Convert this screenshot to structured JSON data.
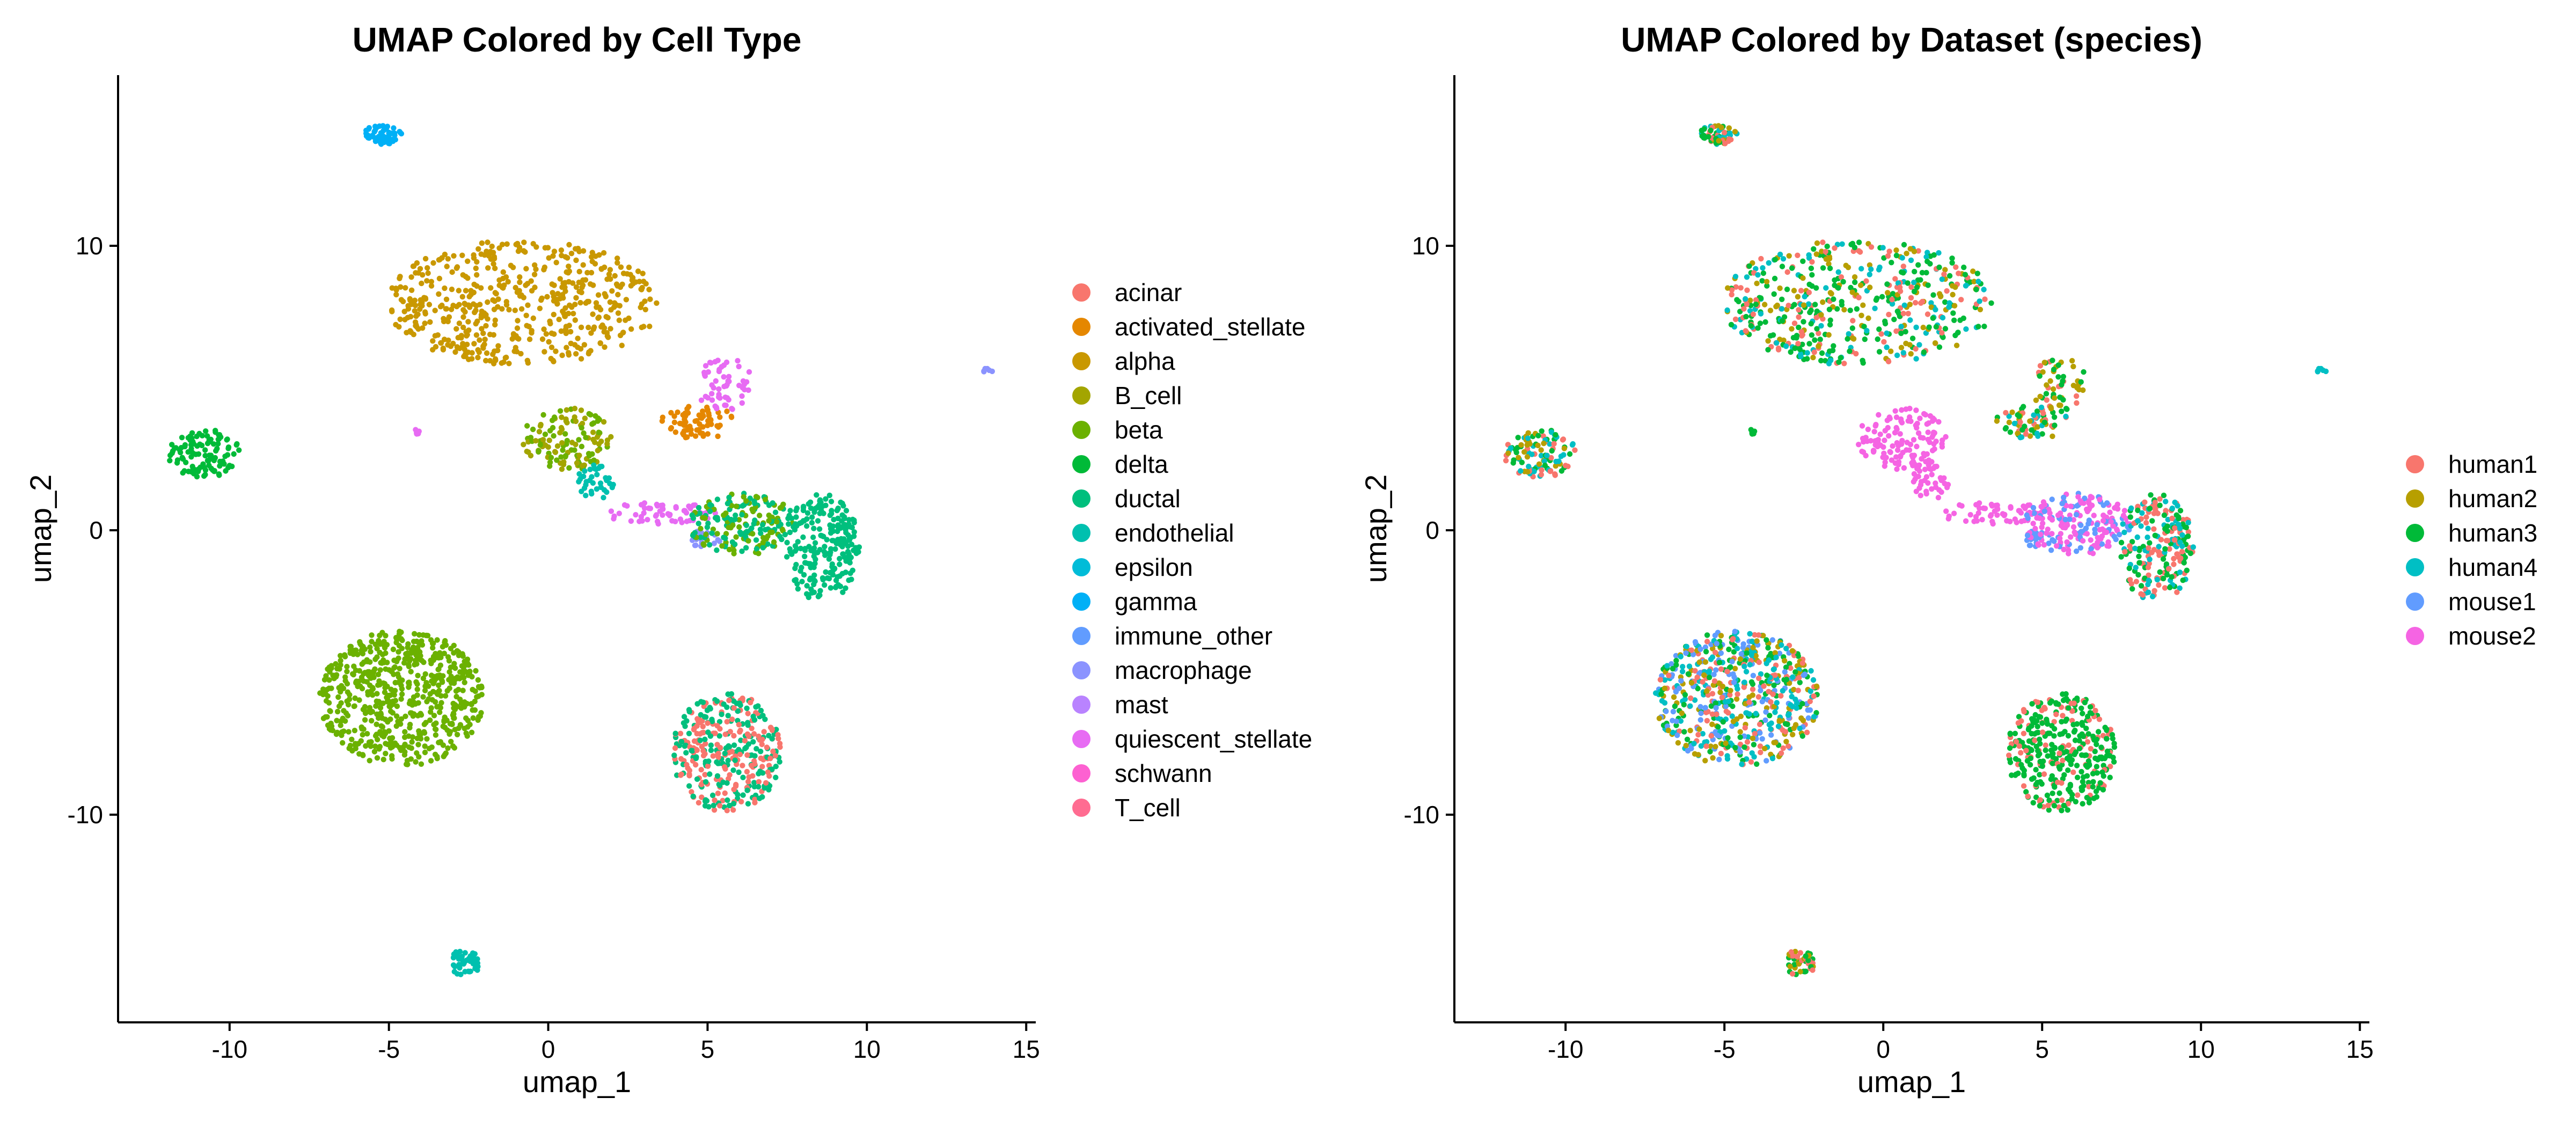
{
  "chart_data": [
    {
      "type": "scatter",
      "title": "UMAP Colored by Cell Type",
      "xlabel": "umap_1",
      "ylabel": "umap_2",
      "xlim": [
        -13.5,
        15.3
      ],
      "ylim": [
        -17.3,
        16
      ],
      "xticks": [
        -10,
        -5,
        0,
        5,
        10,
        15
      ],
      "yticks": [
        -10,
        0,
        10
      ],
      "grid": false,
      "legend_position": "right",
      "legend": [
        {
          "label": "acinar",
          "color": "#F8766D"
        },
        {
          "label": "activated_stellate",
          "color": "#E58700"
        },
        {
          "label": "alpha",
          "color": "#C99800"
        },
        {
          "label": "B_cell",
          "color": "#A3A500"
        },
        {
          "label": "beta",
          "color": "#6BB100"
        },
        {
          "label": "delta",
          "color": "#00BA38"
        },
        {
          "label": "ductal",
          "color": "#00BF7D"
        },
        {
          "label": "endothelial",
          "color": "#00C0AF"
        },
        {
          "label": "epsilon",
          "color": "#00BCD8"
        },
        {
          "label": "gamma",
          "color": "#00B0F6"
        },
        {
          "label": "immune_other",
          "color": "#619CFF"
        },
        {
          "label": "macrophage",
          "color": "#8B93FF"
        },
        {
          "label": "mast",
          "color": "#B983FF"
        },
        {
          "label": "quiescent_stellate",
          "color": "#E76BF3"
        },
        {
          "label": "schwann",
          "color": "#FD61D1"
        },
        {
          "label": "T_cell",
          "color": "#FF6C91"
        }
      ],
      "clusters": [
        {
          "x": -5.2,
          "y": 13.9,
          "rx": 0.6,
          "ry": 0.35,
          "n": 60,
          "colors": [
            "#00B0F6"
          ]
        },
        {
          "x": -0.8,
          "y": 8.0,
          "rx": 4.3,
          "ry": 2.2,
          "n": 520,
          "colors": [
            "#C99800"
          ]
        },
        {
          "x": -10.8,
          "y": 2.7,
          "rx": 1.2,
          "ry": 0.85,
          "n": 110,
          "colors": [
            "#00BA38"
          ]
        },
        {
          "x": 0.6,
          "y": 3.2,
          "rx": 1.4,
          "ry": 1.1,
          "n": 130,
          "colors": [
            "#6BB100",
            "#A3A500"
          ]
        },
        {
          "x": 1.5,
          "y": 1.7,
          "rx": 0.6,
          "ry": 0.6,
          "n": 35,
          "colors": [
            "#00C0AF"
          ]
        },
        {
          "x": 4.7,
          "y": 3.8,
          "rx": 1.2,
          "ry": 0.6,
          "n": 70,
          "colors": [
            "#E58700"
          ]
        },
        {
          "x": 5.5,
          "y": 5.2,
          "rx": 0.9,
          "ry": 1.0,
          "n": 55,
          "colors": [
            "#E76BF3"
          ]
        },
        {
          "x": 3.5,
          "y": 0.6,
          "rx": 1.8,
          "ry": 0.4,
          "n": 60,
          "colors": [
            "#E76BF3"
          ]
        },
        {
          "x": 4.9,
          "y": -0.3,
          "rx": 0.5,
          "ry": 0.3,
          "n": 20,
          "colors": [
            "#8B93FF"
          ]
        },
        {
          "x": 6.1,
          "y": 0.2,
          "rx": 1.7,
          "ry": 1.1,
          "n": 190,
          "colors": [
            "#6BB100",
            "#00BF7D"
          ]
        },
        {
          "x": 8.6,
          "y": -0.6,
          "rx": 1.2,
          "ry": 1.9,
          "n": 220,
          "colors": [
            "#00BF7D"
          ]
        },
        {
          "x": -4.6,
          "y": -5.9,
          "rx": 2.6,
          "ry": 2.4,
          "n": 620,
          "colors": [
            "#6BB100"
          ]
        },
        {
          "x": 5.6,
          "y": -7.8,
          "rx": 1.7,
          "ry": 2.1,
          "n": 360,
          "colors": [
            "#F8766D",
            "#00BF7D"
          ]
        },
        {
          "x": -2.6,
          "y": -15.2,
          "rx": 0.45,
          "ry": 0.5,
          "n": 45,
          "colors": [
            "#00C0AF"
          ]
        },
        {
          "x": 13.8,
          "y": 5.6,
          "rx": 0.15,
          "ry": 0.1,
          "n": 6,
          "colors": [
            "#8B93FF"
          ]
        },
        {
          "x": -4.1,
          "y": 3.5,
          "rx": 0.2,
          "ry": 0.12,
          "n": 5,
          "colors": [
            "#E76BF3"
          ]
        }
      ]
    },
    {
      "type": "scatter",
      "title": "UMAP Colored by Dataset (species)",
      "xlabel": "umap_1",
      "ylabel": "umap_2",
      "xlim": [
        -13.5,
        15.3
      ],
      "ylim": [
        -17.3,
        16
      ],
      "xticks": [
        -10,
        -5,
        0,
        5,
        10,
        15
      ],
      "yticks": [
        -10,
        0,
        10
      ],
      "grid": false,
      "legend_position": "right",
      "legend": [
        {
          "label": "human1",
          "color": "#F8766D"
        },
        {
          "label": "human2",
          "color": "#B79F00"
        },
        {
          "label": "human3",
          "color": "#00BA38"
        },
        {
          "label": "human4",
          "color": "#00BFC4"
        },
        {
          "label": "mouse1",
          "color": "#619CFF"
        },
        {
          "label": "mouse2",
          "color": "#F564E3"
        }
      ],
      "clusters": [
        {
          "x": -5.2,
          "y": 13.9,
          "rx": 0.6,
          "ry": 0.35,
          "n": 60,
          "colors": [
            "#00BA38",
            "#00BFC4",
            "#F8766D",
            "#B79F00"
          ]
        },
        {
          "x": -0.8,
          "y": 8.0,
          "rx": 4.3,
          "ry": 2.2,
          "n": 520,
          "colors": [
            "#00BA38",
            "#00BA38",
            "#00BFC4",
            "#F8766D",
            "#B79F00"
          ]
        },
        {
          "x": -10.8,
          "y": 2.7,
          "rx": 1.2,
          "ry": 0.85,
          "n": 110,
          "colors": [
            "#00BA38",
            "#00BFC4",
            "#F8766D",
            "#B79F00"
          ]
        },
        {
          "x": 0.6,
          "y": 3.2,
          "rx": 1.4,
          "ry": 1.1,
          "n": 130,
          "colors": [
            "#F564E3"
          ]
        },
        {
          "x": 1.5,
          "y": 1.7,
          "rx": 0.6,
          "ry": 0.6,
          "n": 35,
          "colors": [
            "#F564E3"
          ]
        },
        {
          "x": 4.7,
          "y": 3.8,
          "rx": 1.2,
          "ry": 0.6,
          "n": 70,
          "colors": [
            "#00BA38",
            "#00BFC4",
            "#F8766D",
            "#B79F00"
          ]
        },
        {
          "x": 5.5,
          "y": 5.2,
          "rx": 0.9,
          "ry": 1.0,
          "n": 55,
          "colors": [
            "#00BA38",
            "#F8766D",
            "#B79F00"
          ]
        },
        {
          "x": 3.5,
          "y": 0.6,
          "rx": 1.8,
          "ry": 0.4,
          "n": 60,
          "colors": [
            "#F564E3"
          ]
        },
        {
          "x": 4.9,
          "y": -0.3,
          "rx": 0.5,
          "ry": 0.3,
          "n": 20,
          "colors": [
            "#619CFF"
          ]
        },
        {
          "x": 6.1,
          "y": 0.2,
          "rx": 1.7,
          "ry": 1.1,
          "n": 190,
          "colors": [
            "#F564E3",
            "#F564E3",
            "#619CFF"
          ]
        },
        {
          "x": 8.6,
          "y": -0.6,
          "rx": 1.2,
          "ry": 1.9,
          "n": 220,
          "colors": [
            "#00BA38",
            "#00BFC4",
            "#F8766D"
          ]
        },
        {
          "x": -4.6,
          "y": -5.9,
          "rx": 2.6,
          "ry": 2.4,
          "n": 620,
          "colors": [
            "#00BA38",
            "#00BFC4",
            "#F8766D",
            "#B79F00",
            "#619CFF"
          ]
        },
        {
          "x": 5.6,
          "y": -7.8,
          "rx": 1.7,
          "ry": 2.1,
          "n": 360,
          "colors": [
            "#00BA38",
            "#00BA38",
            "#00BA38",
            "#F8766D"
          ]
        },
        {
          "x": -2.6,
          "y": -15.2,
          "rx": 0.45,
          "ry": 0.5,
          "n": 45,
          "colors": [
            "#00BA38",
            "#F8766D",
            "#B79F00"
          ]
        },
        {
          "x": 13.8,
          "y": 5.6,
          "rx": 0.15,
          "ry": 0.1,
          "n": 6,
          "colors": [
            "#00BFC4"
          ]
        },
        {
          "x": -4.1,
          "y": 3.5,
          "rx": 0.2,
          "ry": 0.12,
          "n": 5,
          "colors": [
            "#00BA38"
          ]
        }
      ]
    }
  ]
}
